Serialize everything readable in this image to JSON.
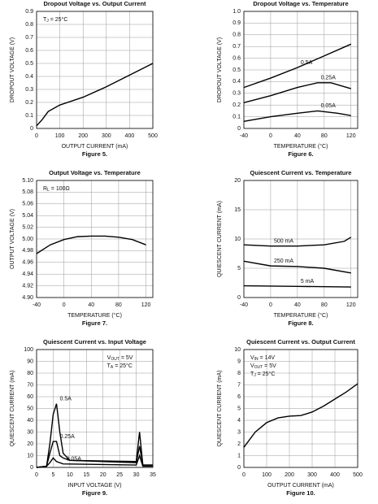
{
  "chart_data": [
    {
      "type": "line",
      "title": "Dropout Voltage vs. Output Current",
      "caption": "Figure 5.",
      "xlabel": "OUTPUT CURRENT (mA)",
      "ylabel": "DROPOUT VOLTAGE (V)",
      "xlim": [
        0,
        500
      ],
      "xticks": [
        0,
        100,
        200,
        300,
        400,
        500
      ],
      "ylim": [
        0,
        0.9
      ],
      "yticks": [
        0,
        0.1,
        0.2,
        0.3,
        0.4,
        0.5,
        0.6,
        0.7,
        0.8,
        0.9
      ],
      "grid": true,
      "annotations": [
        [
          "T",
          "J",
          " = 25°C"
        ]
      ],
      "series": [
        {
          "color": "#000000",
          "x": [
            0,
            25,
            50,
            100,
            200,
            300,
            400,
            500
          ],
          "values": [
            0.02,
            0.07,
            0.13,
            0.18,
            0.24,
            0.32,
            0.41,
            0.5
          ]
        }
      ]
    },
    {
      "type": "line",
      "title": "Dropout Voltage vs. Temperature",
      "caption": "Figure 6.",
      "xlabel": "TEMPERATURE (°C)",
      "ylabel": "DROPOUT VOLTAGE (V)",
      "xlim": [
        -40,
        130
      ],
      "xticks": [
        -40,
        0,
        40,
        80,
        120
      ],
      "ylim": [
        0,
        1
      ],
      "yticks": [
        0,
        0.1,
        0.2,
        0.3,
        0.4,
        0.5,
        0.6,
        0.7,
        0.8,
        0.9,
        {
          "value": 1,
          "label": "1.0"
        }
      ],
      "grid": true,
      "annotations": [],
      "series": [
        {
          "name": "0.5A",
          "color": "#000000",
          "x": [
            -40,
            0,
            40,
            80,
            120
          ],
          "values": [
            0.35,
            0.43,
            0.52,
            0.62,
            0.72
          ]
        },
        {
          "name": "0.25A",
          "color": "#000000",
          "x": [
            -40,
            0,
            40,
            70,
            90,
            120
          ],
          "values": [
            0.22,
            0.28,
            0.35,
            0.39,
            0.39,
            0.34
          ]
        },
        {
          "name": "0.05A",
          "color": "#000000",
          "x": [
            -40,
            0,
            40,
            70,
            100,
            120
          ],
          "values": [
            0.06,
            0.1,
            0.13,
            0.15,
            0.13,
            0.11
          ]
        }
      ]
    },
    {
      "type": "line",
      "title": "Output Voltage vs. Temperature",
      "caption": "Figure 7.",
      "xlabel": "TEMPERATURE (°C)",
      "ylabel": "OUTPUT VOLTAGE (V)",
      "xlim": [
        -40,
        130
      ],
      "xticks": [
        -40,
        0,
        40,
        80,
        120
      ],
      "ylim": [
        4.9,
        5.1
      ],
      "yticks": [
        {
          "value": 4.9,
          "label": "4.90"
        },
        4.92,
        4.94,
        4.96,
        4.98,
        {
          "value": 5,
          "label": "5.00"
        },
        5.02,
        5.04,
        5.06,
        5.08,
        {
          "value": 5.1,
          "label": "5.10"
        }
      ],
      "grid": true,
      "annotations": [
        [
          "R",
          "L",
          " = 100Ω"
        ]
      ],
      "series": [
        {
          "color": "#000000",
          "x": [
            -40,
            -20,
            0,
            20,
            40,
            60,
            80,
            100,
            120
          ],
          "values": [
            4.975,
            4.99,
            4.999,
            5.004,
            5.005,
            5.005,
            5.003,
            4.999,
            4.99
          ]
        }
      ]
    },
    {
      "type": "line",
      "title": "Quiescent Current vs. Temperature",
      "caption": "Figure 8.",
      "xlabel": "TEMPERATURE (°C)",
      "ylabel": "QUIESCENT CURRENT (mA)",
      "xlim": [
        -40,
        130
      ],
      "xticks": [
        -40,
        0,
        40,
        80,
        120
      ],
      "ylim": [
        0,
        20
      ],
      "yticks": [
        0,
        5,
        10,
        15,
        20
      ],
      "grid": true,
      "annotations": [],
      "series": [
        {
          "name": "500 mA",
          "color": "#000000",
          "x": [
            -40,
            0,
            40,
            80,
            110,
            120
          ],
          "values": [
            9,
            8.8,
            8.8,
            9,
            9.6,
            10.3
          ]
        },
        {
          "name": "250 mA",
          "color": "#000000",
          "x": [
            -40,
            0,
            40,
            80,
            120
          ],
          "values": [
            6.2,
            5.4,
            5.3,
            5,
            4.2
          ]
        },
        {
          "name": "5 mA",
          "color": "#000000",
          "x": [
            -40,
            40,
            120
          ],
          "values": [
            2,
            1.9,
            1.8
          ]
        }
      ]
    },
    {
      "type": "line",
      "title": "Quiescent Current vs. Input Voltage",
      "caption": "Figure 9.",
      "xlabel": "INPUT VOLTAGE (V)",
      "ylabel": "QUIESCENT CURRENT (mA)",
      "xlim": [
        0,
        35
      ],
      "xticks": [
        0,
        5,
        10,
        15,
        20,
        25,
        30,
        35
      ],
      "ylim": [
        0,
        100
      ],
      "yticks": [
        0,
        10,
        20,
        30,
        40,
        50,
        60,
        70,
        80,
        90,
        100
      ],
      "grid": true,
      "annotations": [
        [
          "V",
          "OUT",
          " = 5V"
        ],
        [
          "T",
          "A",
          " = 25°C"
        ]
      ],
      "series": [
        {
          "name": "0.5A",
          "color": "#000000",
          "x": [
            0,
            3,
            4,
            5,
            6,
            7,
            8,
            10,
            30,
            31,
            32,
            35
          ],
          "values": [
            0,
            1,
            20,
            45,
            54,
            30,
            12,
            6,
            5,
            30,
            2,
            2
          ]
        },
        {
          "name": "0.25A",
          "color": "#000000",
          "x": [
            0,
            3,
            4,
            5,
            6,
            7,
            8,
            10,
            30,
            31,
            32,
            35
          ],
          "values": [
            0,
            1,
            12,
            22,
            22,
            10,
            8,
            6,
            4,
            18,
            2,
            2
          ]
        },
        {
          "name": "0.05A",
          "color": "#000000",
          "x": [
            0,
            3,
            4,
            5,
            6,
            8,
            30,
            31,
            32,
            35
          ],
          "values": [
            0,
            1,
            4,
            8,
            5,
            3,
            2,
            10,
            1,
            1
          ]
        }
      ]
    },
    {
      "type": "line",
      "title": "Quiescent Current vs. Output Current",
      "caption": "Figure 10.",
      "xlabel": "OUTPUT CURRENT (mA)",
      "ylabel": "QUIESCENT CURRENT (mA)",
      "xlim": [
        0,
        500
      ],
      "xticks": [
        0,
        100,
        200,
        300,
        400,
        500
      ],
      "ylim": [
        0,
        10
      ],
      "yticks": [
        0,
        1,
        2,
        3,
        4,
        5,
        6,
        7,
        8,
        9,
        10
      ],
      "grid": true,
      "annotations": [
        [
          "V",
          "IN",
          " = 14V"
        ],
        [
          "V",
          "OUT",
          " = 5V"
        ],
        [
          "T",
          "J",
          " = 25°C"
        ]
      ],
      "series": [
        {
          "color": "#000000",
          "x": [
            0,
            50,
            100,
            150,
            200,
            250,
            300,
            350,
            400,
            450,
            500
          ],
          "values": [
            1.7,
            3,
            3.8,
            4.2,
            4.35,
            4.4,
            4.7,
            5.2,
            5.8,
            6.4,
            7.1
          ]
        }
      ]
    }
  ]
}
